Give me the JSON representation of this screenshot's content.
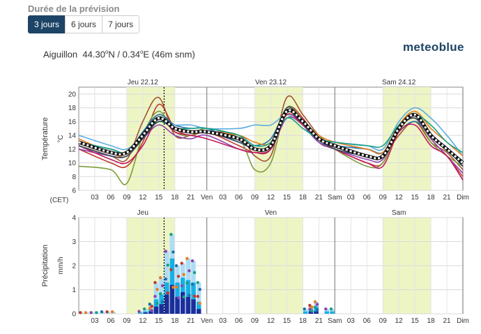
{
  "header": {
    "title": "Durée de la prévision",
    "buttons": [
      {
        "label": "3 jours",
        "active": true
      },
      {
        "label": "6 jours",
        "active": false
      },
      {
        "label": "7 jours",
        "active": false
      }
    ]
  },
  "location": {
    "name": "Aiguillon",
    "lat": "44.30",
    "lat_dir": "N",
    "lon": "0.34",
    "lon_dir": "E",
    "alt": "(46m snm)"
  },
  "logo": "meteoblue",
  "chart_data": [
    {
      "type": "line",
      "ylabel": "Température",
      "yunit": "°C",
      "ylim": [
        6,
        21
      ],
      "yticks": [
        6,
        8,
        10,
        12,
        14,
        16,
        18,
        20
      ],
      "tz_label": "(CET)",
      "day_labels": [
        "Jeu 22.12",
        "Ven 23.12",
        "Sam 24.12"
      ],
      "x_ticks": [
        "03",
        "06",
        "09",
        "12",
        "15",
        "18",
        "21",
        "Ven",
        "03",
        "06",
        "09",
        "12",
        "15",
        "18",
        "21",
        "Sam",
        "03",
        "06",
        "09",
        "12",
        "15",
        "18",
        "21",
        "Dim"
      ],
      "x_hours": [
        3,
        6,
        9,
        12,
        15,
        18,
        21,
        24,
        27,
        30,
        33,
        36,
        39,
        42,
        45,
        48,
        51,
        54,
        57,
        60,
        63,
        66,
        69,
        72
      ],
      "daylight_hours": [
        [
          9,
          18
        ],
        [
          33,
          42
        ],
        [
          57,
          66
        ]
      ],
      "now_hour": 16,
      "mean_series": {
        "x": [
          0,
          6,
          9,
          12,
          15,
          18,
          21,
          24,
          30,
          33,
          36,
          39,
          42,
          45,
          48,
          54,
          57,
          60,
          63,
          66,
          69,
          72
        ],
        "values": [
          13,
          11.5,
          11.5,
          14,
          16.5,
          15,
          14.5,
          14.5,
          13.5,
          12,
          12.5,
          17.5,
          16,
          13.5,
          12.5,
          11,
          11,
          15,
          17,
          14,
          12,
          10
        ]
      },
      "series": [
        {
          "color": "#c0392b",
          "x": [
            0,
            6,
            9,
            12,
            15,
            18,
            21,
            24,
            30,
            33,
            36,
            39,
            42,
            45,
            48,
            54,
            57,
            60,
            63,
            66,
            69,
            72
          ],
          "values": [
            12,
            10,
            9.5,
            13,
            18.5,
            15,
            14,
            14.5,
            12.5,
            11.5,
            12,
            18,
            16.5,
            13,
            12,
            10,
            10,
            15,
            17,
            13.5,
            11,
            8
          ]
        },
        {
          "color": "#a0522d",
          "x": [
            0,
            6,
            9,
            12,
            15,
            18,
            21,
            24,
            30,
            33,
            36,
            39,
            42,
            45,
            48,
            54,
            57,
            60,
            63,
            66,
            69,
            72
          ],
          "values": [
            12.5,
            11,
            10.5,
            16,
            19.5,
            14,
            14,
            14.5,
            14,
            11,
            11,
            19.5,
            17,
            14,
            12.5,
            11,
            11,
            14,
            16,
            13,
            11.5,
            9
          ]
        },
        {
          "color": "#7d9c3c",
          "x": [
            0,
            6,
            9,
            12,
            15,
            18,
            21,
            24,
            30,
            33,
            36,
            39,
            42,
            45,
            48,
            54,
            57,
            60,
            63,
            66,
            69,
            72
          ],
          "values": [
            9.5,
            9,
            7,
            14,
            17.5,
            14.5,
            14,
            15,
            13.5,
            9,
            10,
            18,
            16,
            14,
            12,
            9.5,
            10,
            15,
            16.5,
            13,
            11,
            9.5
          ]
        },
        {
          "color": "#1f6fa8",
          "x": [
            0,
            6,
            9,
            12,
            15,
            18,
            21,
            24,
            30,
            33,
            36,
            39,
            42,
            45,
            48,
            54,
            57,
            60,
            63,
            66,
            69,
            72
          ],
          "values": [
            13,
            12,
            11.5,
            14.5,
            17,
            15.5,
            15,
            15,
            13,
            12.5,
            13.5,
            17.5,
            15.5,
            13,
            12.5,
            12,
            11.5,
            14.5,
            16,
            14,
            12,
            10
          ]
        },
        {
          "color": "#5dade2",
          "x": [
            0,
            6,
            9,
            12,
            15,
            18,
            21,
            24,
            30,
            33,
            36,
            39,
            42,
            45,
            48,
            54,
            57,
            60,
            63,
            66,
            69,
            72
          ],
          "values": [
            14,
            12.5,
            12,
            14,
            16,
            15.5,
            15.5,
            15,
            15,
            15.5,
            15.5,
            17,
            15.5,
            13.5,
            13,
            12.5,
            12,
            16,
            18,
            16.5,
            14,
            11
          ]
        },
        {
          "color": "#8e44ad",
          "x": [
            0,
            6,
            9,
            12,
            15,
            18,
            21,
            24,
            30,
            33,
            36,
            39,
            42,
            45,
            48,
            54,
            57,
            60,
            63,
            66,
            69,
            72
          ],
          "values": [
            12,
            11,
            11,
            13.5,
            15.5,
            14,
            13.5,
            14,
            12,
            11.5,
            12,
            16.5,
            15.5,
            13,
            12,
            10.5,
            10.5,
            15,
            16.5,
            13.5,
            11,
            8.5
          ]
        },
        {
          "color": "#c2185b",
          "x": [
            0,
            6,
            9,
            12,
            15,
            18,
            21,
            24,
            30,
            33,
            36,
            39,
            42,
            45,
            48,
            54,
            57,
            60,
            63,
            66,
            69,
            72
          ],
          "values": [
            12.5,
            10.5,
            10,
            12.5,
            16.5,
            14.5,
            14,
            13.5,
            12,
            11.5,
            12,
            17,
            15.5,
            13.5,
            12,
            10,
            9.5,
            14.5,
            15.5,
            12.5,
            11,
            7.5
          ]
        },
        {
          "color": "#e67e22",
          "x": [
            0,
            6,
            9,
            12,
            15,
            18,
            21,
            24,
            30,
            33,
            36,
            39,
            42,
            45,
            48,
            54,
            57,
            60,
            63,
            66,
            69,
            72
          ],
          "values": [
            13.5,
            11.5,
            11,
            14,
            16,
            15,
            14.5,
            14.5,
            14,
            13,
            13,
            17.5,
            16,
            14,
            13,
            12,
            11.5,
            15.5,
            17.5,
            15,
            13,
            11
          ]
        },
        {
          "color": "#16a085",
          "x": [
            0,
            6,
            9,
            12,
            15,
            18,
            21,
            24,
            30,
            33,
            36,
            39,
            42,
            45,
            48,
            54,
            57,
            60,
            63,
            66,
            69,
            72
          ],
          "values": [
            13,
            12,
            11.5,
            14,
            16,
            15,
            15,
            15,
            14,
            12.5,
            13,
            16.5,
            15,
            13.5,
            13,
            12.5,
            12.5,
            15.5,
            17,
            15.5,
            13,
            11.5
          ]
        },
        {
          "color": "#34495e",
          "x": [
            0,
            6,
            9,
            12,
            15,
            18,
            21,
            24,
            30,
            33,
            36,
            39,
            42,
            45,
            48,
            54,
            57,
            60,
            63,
            66,
            69,
            72
          ],
          "values": [
            12.5,
            11,
            11,
            13.5,
            16,
            15,
            14.5,
            14.5,
            13,
            12,
            12.5,
            18,
            16,
            13.5,
            12,
            11,
            11,
            15,
            16.5,
            14,
            12,
            9.5
          ]
        }
      ]
    },
    {
      "type": "bar",
      "ylabel": "Précipitation",
      "yunit": "mm/h",
      "ylim": [
        0,
        4
      ],
      "yticks": [
        0,
        1,
        2,
        3,
        4
      ],
      "day_labels": [
        "Jeu",
        "Ven",
        "Sam"
      ],
      "x_ticks": [
        "03",
        "06",
        "09",
        "12",
        "15",
        "18",
        "21",
        "Ven",
        "03",
        "06",
        "09",
        "12",
        "15",
        "18",
        "21",
        "Sam",
        "03",
        "06",
        "09",
        "12",
        "15",
        "18",
        "21",
        "Dim"
      ],
      "x_hours": [
        3,
        6,
        9,
        12,
        15,
        18,
        21,
        24,
        27,
        30,
        33,
        36,
        39,
        42,
        45,
        48,
        51,
        54,
        57,
        60,
        63,
        66,
        69,
        72
      ],
      "daylight_hours": [
        [
          9,
          18
        ],
        [
          33,
          42
        ],
        [
          57,
          66
        ]
      ],
      "now_hour": 16,
      "hours": [
        1,
        2,
        3,
        4,
        5,
        6,
        7,
        12,
        13,
        14,
        15,
        16,
        17,
        18,
        19,
        20,
        21,
        22,
        23,
        43,
        44,
        45,
        47,
        48
      ],
      "max_values": [
        0.05,
        0.05,
        0.05,
        0.05,
        0.08,
        0.08,
        0.08,
        0.1,
        0.2,
        0.4,
        1.3,
        1.5,
        2.6,
        3.3,
        2,
        2.1,
        2.3,
        2.2,
        1.3,
        0.2,
        0.35,
        0.5,
        0.2,
        0.2
      ],
      "mean_values": [
        0,
        0,
        0,
        0,
        0,
        0,
        0,
        0.05,
        0.1,
        0.2,
        0.6,
        0.8,
        1.3,
        2.3,
        1.3,
        1.5,
        1.4,
        1.3,
        0.5,
        0.1,
        0.2,
        0.3,
        0.1,
        0.1
      ],
      "min_values": [
        0,
        0,
        0,
        0,
        0,
        0,
        0,
        0,
        0.05,
        0.1,
        0.3,
        0.4,
        0.8,
        1.2,
        0.7,
        0.9,
        0.7,
        0.6,
        0.2,
        0,
        0.1,
        0.1,
        0,
        0
      ]
    }
  ]
}
